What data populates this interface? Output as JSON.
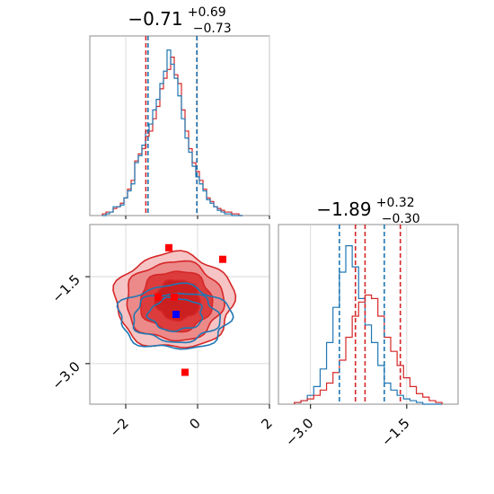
{
  "colors": {
    "red": "#d62728",
    "blue": "#1f77b4",
    "marker_red": "#ff0000",
    "marker_blue": "#0000ff"
  },
  "chart_data": [
    {
      "type": "histogram",
      "panel": "top-left",
      "title_main": "−0.71",
      "title_sup": "+0.69",
      "title_sub": "−0.73",
      "xlim": [
        -3.0,
        2.0
      ],
      "grid": true,
      "vlines": {
        "red": [
          -1.44,
          -0.02
        ],
        "blue": [
          -1.38,
          -0.02
        ]
      },
      "bins_x": [
        -2.6,
        -2.5,
        -2.4,
        -2.3,
        -2.2,
        -2.1,
        -2.0,
        -1.9,
        -1.8,
        -1.7,
        -1.6,
        -1.5,
        -1.4,
        -1.3,
        -1.2,
        -1.1,
        -1.0,
        -0.9,
        -0.8,
        -0.7,
        -0.6,
        -0.5,
        -0.4,
        -0.3,
        -0.2,
        -0.1,
        0.0,
        0.1,
        0.2,
        0.3,
        0.4,
        0.5,
        0.6,
        0.7,
        0.8,
        0.9,
        1.0,
        1.1,
        1.2
      ],
      "series": [
        {
          "color": "red",
          "values": [
            0.01,
            0.02,
            0.02,
            0.04,
            0.05,
            0.07,
            0.1,
            0.15,
            0.2,
            0.31,
            0.35,
            0.38,
            0.45,
            0.48,
            0.55,
            0.62,
            0.72,
            0.78,
            0.83,
            0.9,
            0.8,
            0.75,
            0.6,
            0.48,
            0.38,
            0.3,
            0.25,
            0.2,
            0.15,
            0.1,
            0.08,
            0.05,
            0.04,
            0.03,
            0.02,
            0.02,
            0.01,
            0.01,
            0.0
          ]
        },
        {
          "color": "blue",
          "values": [
            0.0,
            0.01,
            0.02,
            0.05,
            0.05,
            0.06,
            0.1,
            0.14,
            0.18,
            0.3,
            0.34,
            0.4,
            0.48,
            0.52,
            0.6,
            0.66,
            0.75,
            0.82,
            0.94,
            0.86,
            0.78,
            0.68,
            0.55,
            0.44,
            0.36,
            0.28,
            0.22,
            0.18,
            0.14,
            0.09,
            0.07,
            0.05,
            0.03,
            0.02,
            0.01,
            0.01,
            0.0,
            0.0,
            0.0
          ]
        }
      ]
    },
    {
      "type": "contour",
      "panel": "bottom-left",
      "xlim": [
        -3.0,
        2.0
      ],
      "ylim": [
        -3.7,
        -0.6
      ],
      "xticks": [
        -2,
        0,
        2
      ],
      "xtick_labels": [
        "−2",
        "0",
        "2"
      ],
      "yticks": [
        -1.5,
        -3.0
      ],
      "ytick_labels": [
        "−1.5",
        "−3.0"
      ],
      "grid": true,
      "red_markers": [
        {
          "x": -0.8,
          "y": -1.0
        },
        {
          "x": 0.7,
          "y": -1.2
        },
        {
          "x": -1.1,
          "y": -1.85
        },
        {
          "x": -0.65,
          "y": -1.85
        },
        {
          "x": -0.35,
          "y": -3.15
        }
      ],
      "blue_marker": {
        "x": -0.6,
        "y": -2.15
      },
      "red_contours": [
        {
          "cx": -0.65,
          "cy": -1.92,
          "rx": 1.65,
          "ry": 0.82,
          "fill": "#f6c4c4"
        },
        {
          "cx": -0.65,
          "cy": -1.92,
          "rx": 1.35,
          "ry": 0.68,
          "fill": "#ec8a8a"
        },
        {
          "cx": -0.6,
          "cy": -1.92,
          "rx": 1.0,
          "ry": 0.52,
          "fill": "#dc3c3c"
        },
        {
          "cx": -0.55,
          "cy": -1.9,
          "rx": 0.62,
          "ry": 0.35,
          "fill": "#cc2020"
        }
      ],
      "blue_contours": [
        {
          "cx": -0.65,
          "cy": -2.2,
          "rx": 1.55,
          "ry": 0.55
        },
        {
          "cx": -0.6,
          "cy": -2.2,
          "rx": 1.2,
          "ry": 0.42
        },
        {
          "cx": -0.6,
          "cy": -2.15,
          "rx": 0.75,
          "ry": 0.28
        }
      ]
    },
    {
      "type": "histogram",
      "panel": "bottom-right",
      "title_main": "−1.89",
      "title_sup": "+0.32",
      "title_sub": "−0.30",
      "xlim": [
        -3.5,
        -0.7
      ],
      "xticks": [
        -3.0,
        -1.5
      ],
      "xtick_labels": [
        "−3.0",
        "−1.5"
      ],
      "grid": true,
      "vlines": {
        "red": [
          -2.3,
          -1.6,
          -2.15
        ],
        "blue": [
          -2.55,
          -1.85
        ]
      },
      "bins_x": [
        -3.2,
        -3.1,
        -3.0,
        -2.9,
        -2.8,
        -2.7,
        -2.6,
        -2.5,
        -2.4,
        -2.3,
        -2.2,
        -2.1,
        -2.0,
        -1.9,
        -1.8,
        -1.7,
        -1.6,
        -1.5,
        -1.4,
        -1.3,
        -1.2,
        -1.1,
        -1.0
      ],
      "series": [
        {
          "color": "blue",
          "values": [
            0.01,
            0.02,
            0.05,
            0.1,
            0.2,
            0.35,
            0.55,
            0.75,
            0.9,
            0.78,
            0.6,
            0.45,
            0.35,
            0.22,
            0.12,
            0.08,
            0.05,
            0.03,
            0.02,
            0.01,
            0.0,
            0.0,
            0.0
          ]
        },
        {
          "color": "red",
          "values": [
            0.01,
            0.02,
            0.03,
            0.05,
            0.08,
            0.12,
            0.18,
            0.25,
            0.38,
            0.5,
            0.58,
            0.62,
            0.6,
            0.5,
            0.38,
            0.3,
            0.22,
            0.15,
            0.1,
            0.06,
            0.04,
            0.02,
            0.01
          ]
        }
      ]
    }
  ]
}
